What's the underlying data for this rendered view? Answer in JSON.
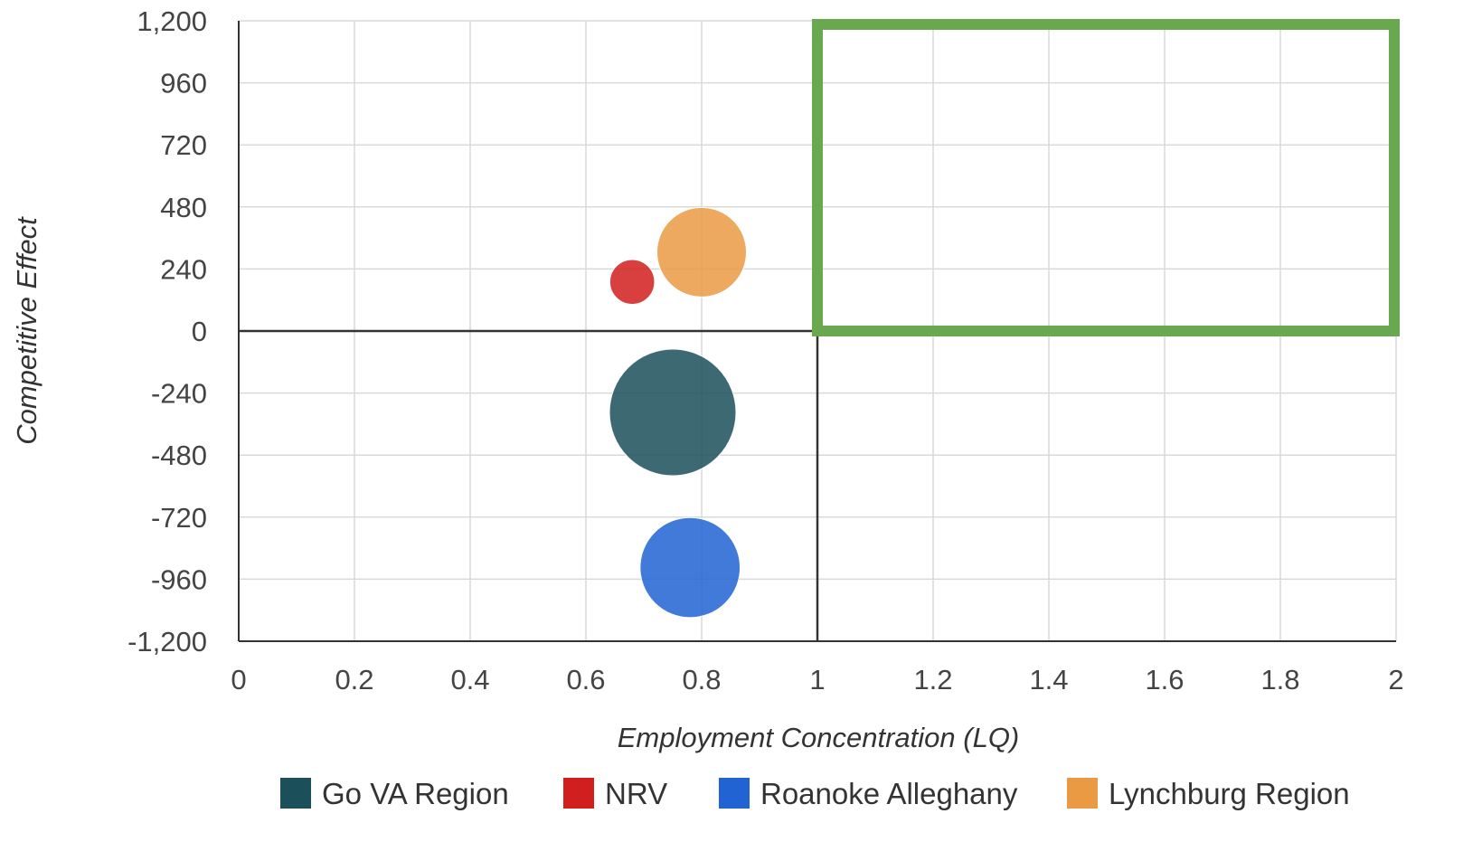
{
  "chart_data": {
    "type": "bubble",
    "title": "",
    "xlabel": "Employment Concentration (LQ)",
    "ylabel": "Competitive Effect",
    "xlim": [
      0,
      2
    ],
    "ylim": [
      -1200,
      1200
    ],
    "x_ticks": [
      "0",
      "0.2",
      "0.4",
      "0.6",
      "0.8",
      "1",
      "1.2",
      "1.4",
      "1.6",
      "1.8",
      "2"
    ],
    "y_ticks": [
      "1,200",
      "960",
      "720",
      "480",
      "240",
      "0",
      "-240",
      "-480",
      "-720",
      "-960",
      "-1,200"
    ],
    "grid": true,
    "legend_position": "bottom",
    "series": [
      {
        "name": "Go VA Region",
        "color": "#1b4f5a",
        "x": 0.75,
        "y": -315,
        "size": 8
      },
      {
        "name": "NRV",
        "color": "#d11f1f",
        "x": 0.68,
        "y": 190,
        "size": 1
      },
      {
        "name": "Roanoke Alleghany",
        "color": "#2163d3",
        "x": 0.78,
        "y": -915,
        "size": 5
      },
      {
        "name": "Lynchburg Region",
        "color": "#ea9a43",
        "x": 0.8,
        "y": 305,
        "size": 4
      }
    ],
    "reference_lines": {
      "x": 1,
      "y": 0
    },
    "highlight_region": {
      "x": [
        1,
        2
      ],
      "y": [
        0,
        1200
      ],
      "color": "#6aa84f"
    }
  }
}
